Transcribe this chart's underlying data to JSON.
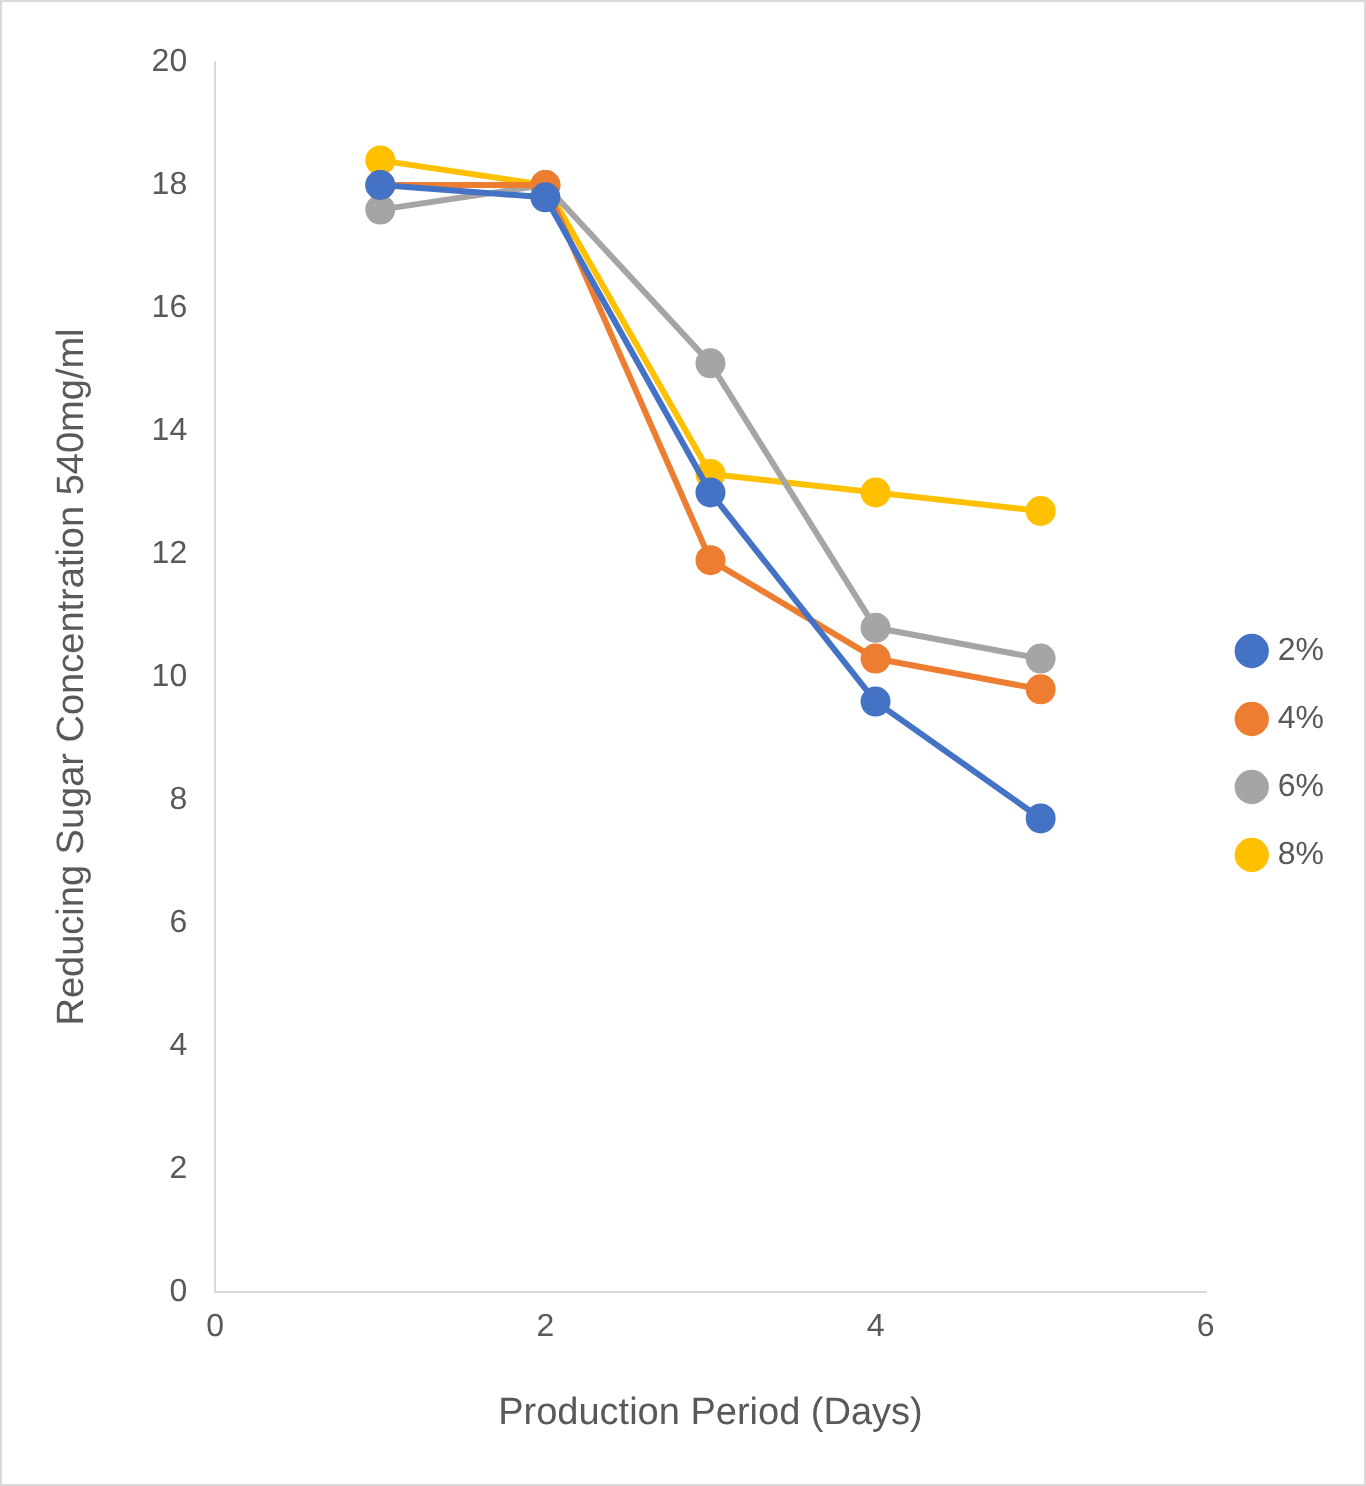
{
  "chart_data": {
    "type": "line",
    "xlabel": "Production Period (Days)",
    "ylabel": "Reducing Sugar Concentration 540mg/ml",
    "x": [
      1,
      2,
      3,
      4,
      5
    ],
    "xlim": [
      0,
      6
    ],
    "xticks": [
      0,
      2,
      4,
      6
    ],
    "ylim": [
      0,
      20
    ],
    "yticks": [
      0,
      2,
      4,
      6,
      8,
      10,
      12,
      14,
      16,
      18,
      20
    ],
    "grid": false,
    "legend": "right",
    "marker": "circle",
    "line_style": "solid",
    "series": [
      {
        "name": "2%",
        "color": "#4472c4",
        "values": [
          18.0,
          17.8,
          13.0,
          9.6,
          7.7
        ]
      },
      {
        "name": "4%",
        "color": "#ed7d31",
        "values": [
          18.0,
          18.0,
          11.9,
          10.3,
          9.8
        ]
      },
      {
        "name": "6%",
        "color": "#a5a5a5",
        "values": [
          17.6,
          18.0,
          15.1,
          10.8,
          10.3
        ]
      },
      {
        "name": "8%",
        "color": "#ffc000",
        "values": [
          18.4,
          18.0,
          13.3,
          13.0,
          12.7
        ]
      }
    ]
  }
}
